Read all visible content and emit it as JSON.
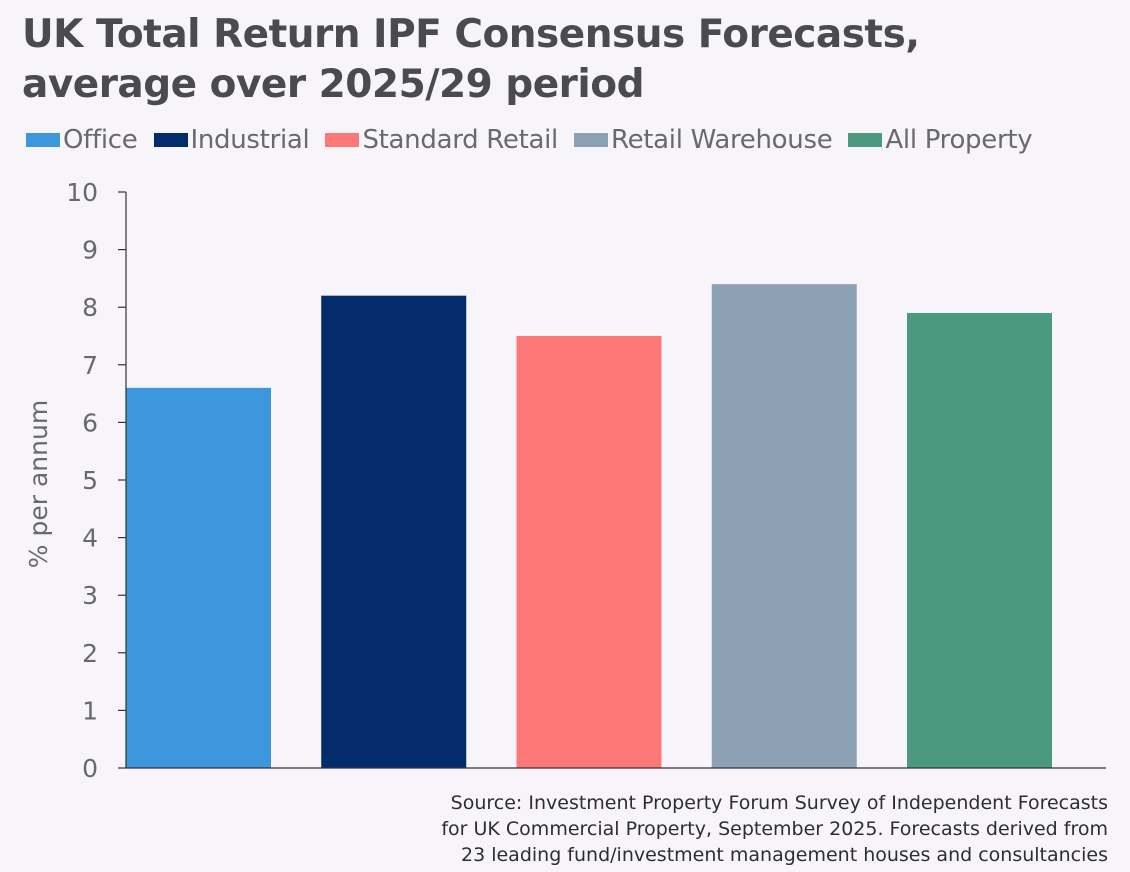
{
  "header": {
    "title_line1": "UK Total Return IPF Consensus Forecasts,",
    "title_line2": "average over 2025/29 period"
  },
  "footer": {
    "source_line1": "Source: Investment Property Forum Survey of Independent Forecasts",
    "source_line2": "for UK Commercial Property, September 2025. Forecasts derived from",
    "source_line3": "23 leading fund/investment management houses and consultancies"
  },
  "chart_data": {
    "type": "bar",
    "title": "UK Total Return IPF Consensus Forecasts, average over 2025/29 period",
    "ylabel": "% per annum",
    "xlabel": "",
    "ylim": [
      0,
      10
    ],
    "yticks": [
      "0",
      "1",
      "2",
      "3",
      "4",
      "5",
      "6",
      "7",
      "8",
      "9",
      "10"
    ],
    "grid": false,
    "legend_position": "top-left",
    "categories": [
      "Office",
      "Industrial",
      "Standard Retail",
      "Retail Warehouse",
      "All Property"
    ],
    "values": [
      6.6,
      8.2,
      7.5,
      8.4,
      7.9
    ],
    "colors": [
      "#3d97dd",
      "#042b6b",
      "#fc7878",
      "#8da1b4",
      "#4b9a80"
    ]
  }
}
